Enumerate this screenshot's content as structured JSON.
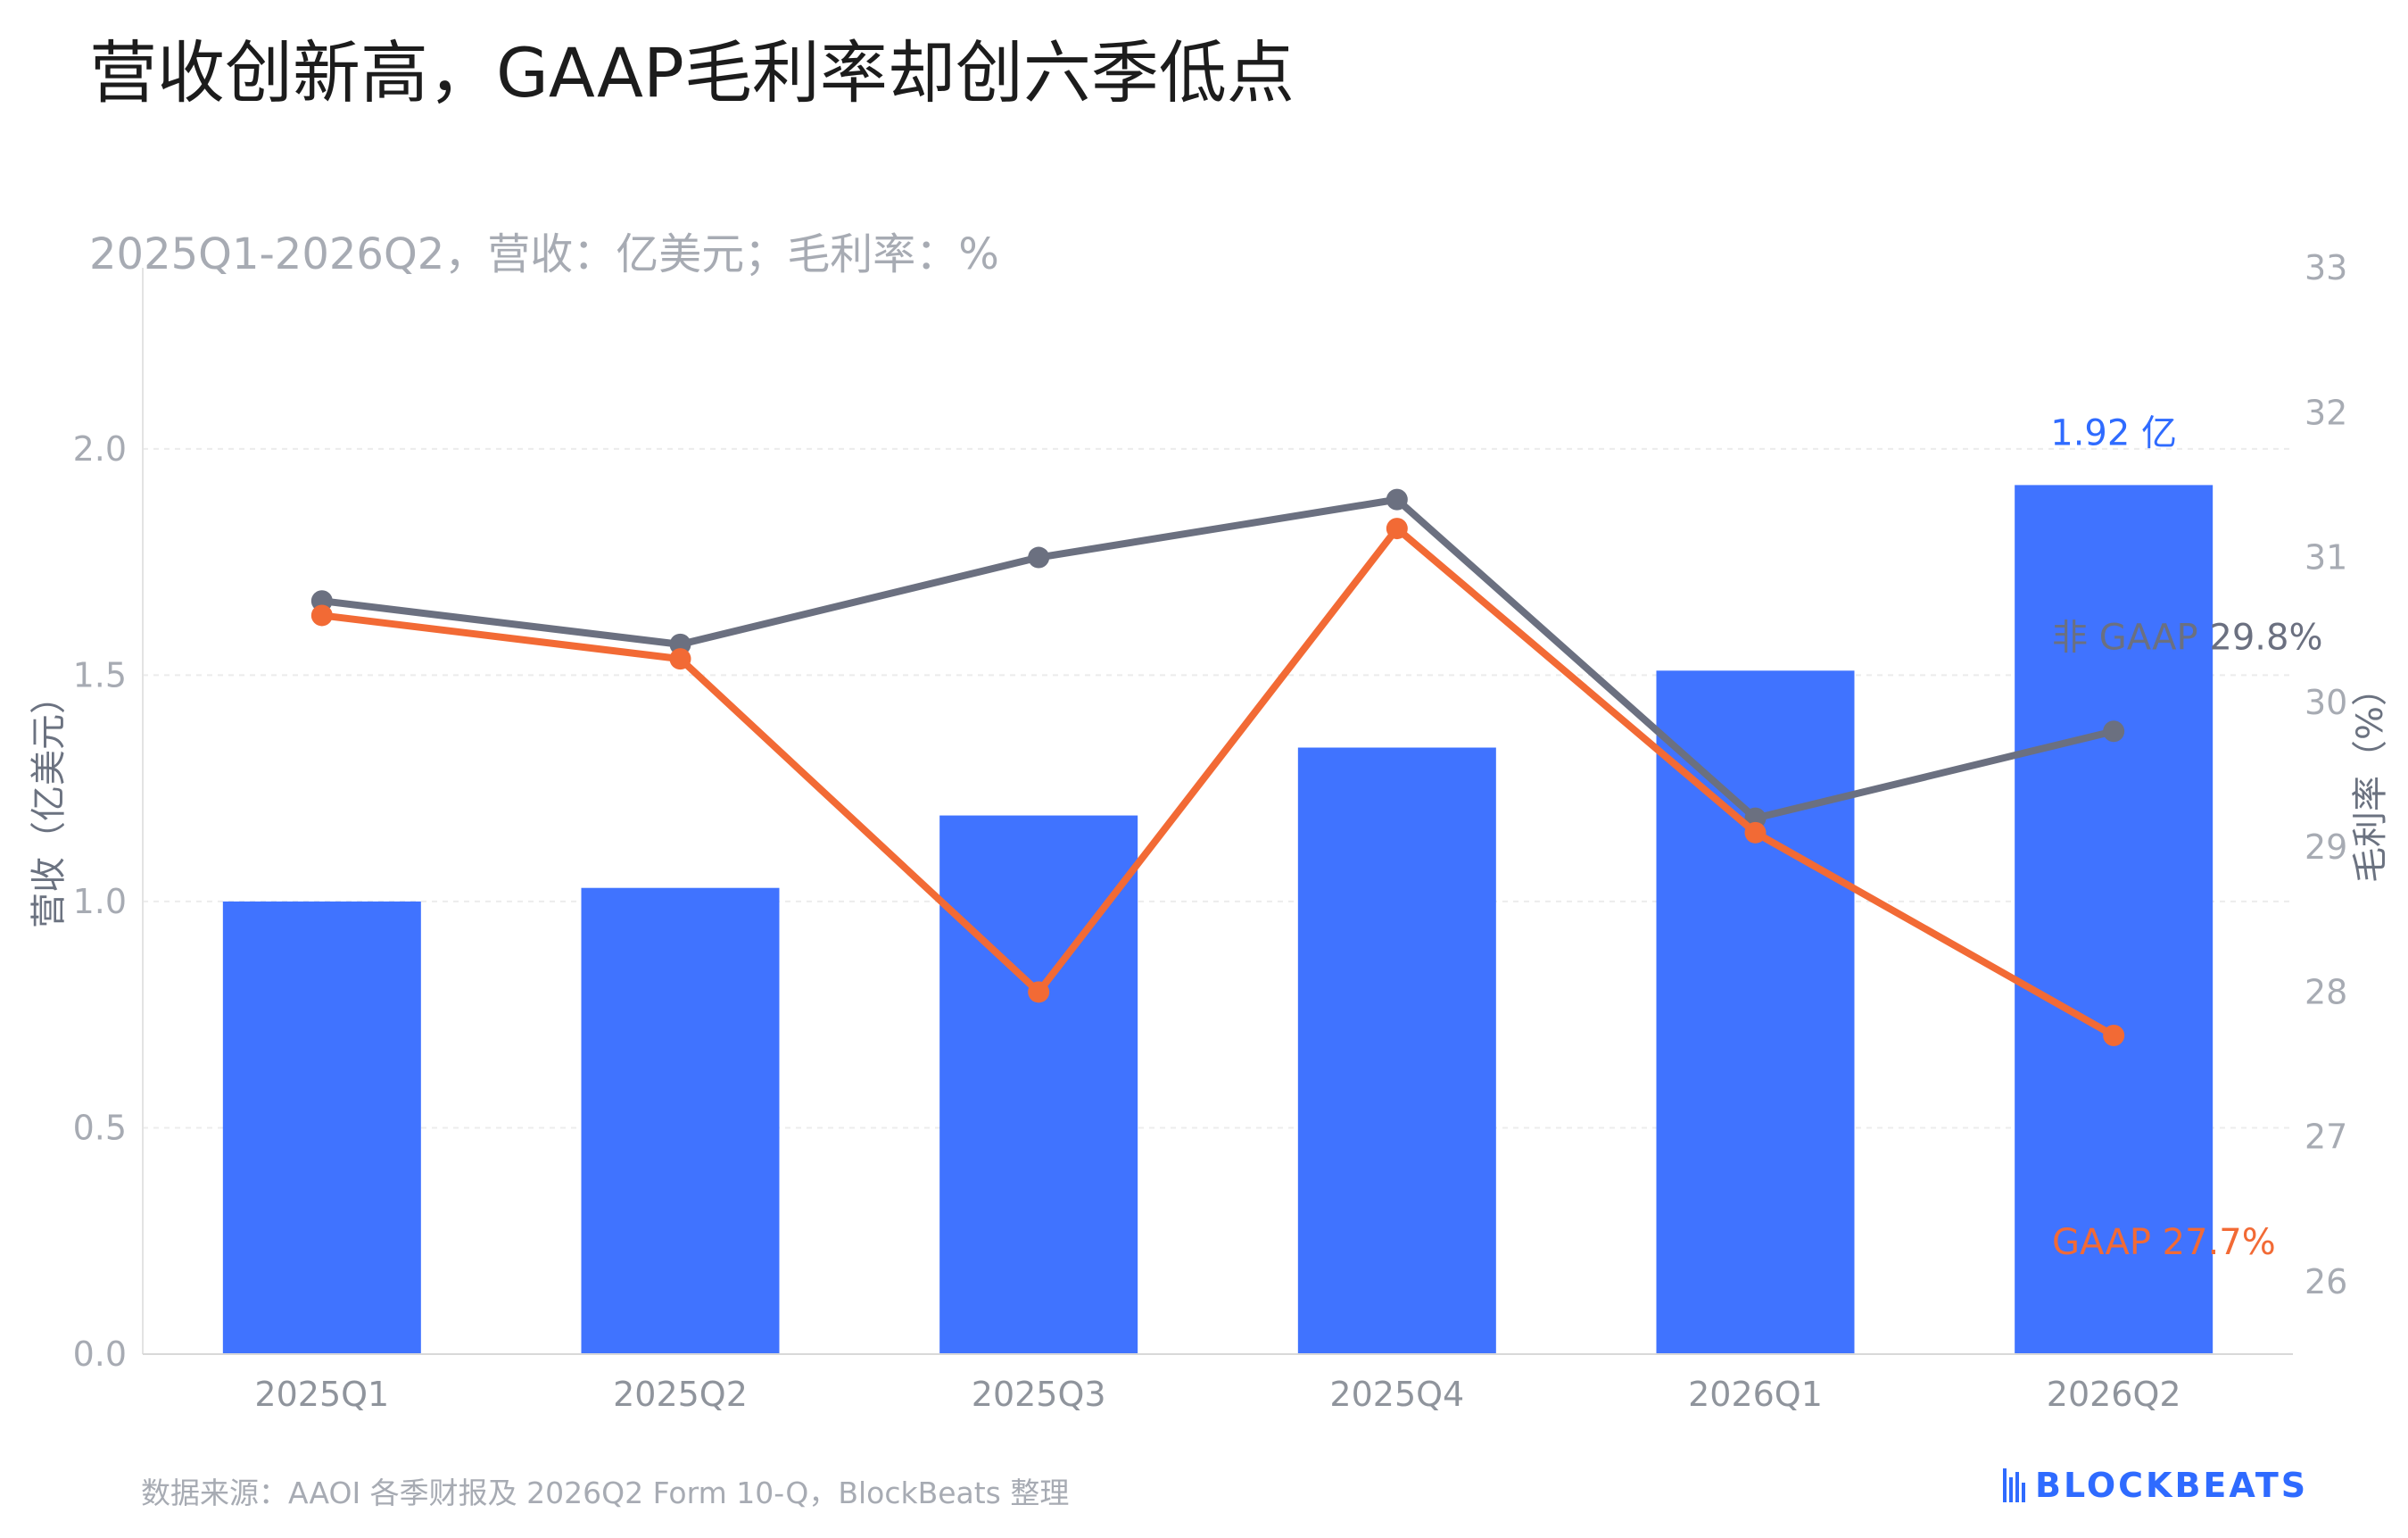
{
  "title": "营收创新高，GAAP毛利率却创六季低点",
  "subtitle": "2025Q1-2026Q2，营收：亿美元；毛利率：%",
  "source": "数据来源：AAOI 各季财报及 2026Q2 Form 10-Q，BlockBeats 整理",
  "logo_text": "BLOCKBEATS",
  "chart_data": {
    "type": "bar",
    "categories": [
      "2025Q1",
      "2025Q2",
      "2025Q3",
      "2025Q4",
      "2026Q1",
      "2026Q2"
    ],
    "series": [
      {
        "name": "营收",
        "axis": "left",
        "type": "bar",
        "color": "#4073ff",
        "values": [
          1.0,
          1.03,
          1.19,
          1.34,
          1.51,
          1.92
        ]
      },
      {
        "name": "非 GAAP",
        "axis": "right",
        "type": "line",
        "color": "#6b7080",
        "values": [
          30.7,
          30.4,
          31.0,
          31.4,
          29.2,
          29.8
        ]
      },
      {
        "name": "GAAP",
        "axis": "right",
        "type": "line",
        "color": "#f26a35",
        "values": [
          30.6,
          30.3,
          28.0,
          31.2,
          29.1,
          27.7
        ]
      }
    ],
    "ylabel": "营收（亿美元）",
    "y2label": "毛利率（%）",
    "ylim": [
      0,
      2.4
    ],
    "yticks": [
      "0.0",
      "0.5",
      "1.0",
      "1.5",
      "2.0"
    ],
    "y2lim": [
      25.5,
      33
    ],
    "y2ticks": [
      "26",
      "27",
      "28",
      "29",
      "30",
      "31",
      "32",
      "33"
    ],
    "annotations": {
      "bar_label": "1.92 亿",
      "nongaap_label": "非 GAAP 29.8%",
      "gaap_label": "GAAP 27.7%"
    },
    "grid": "horizontal dashed"
  }
}
